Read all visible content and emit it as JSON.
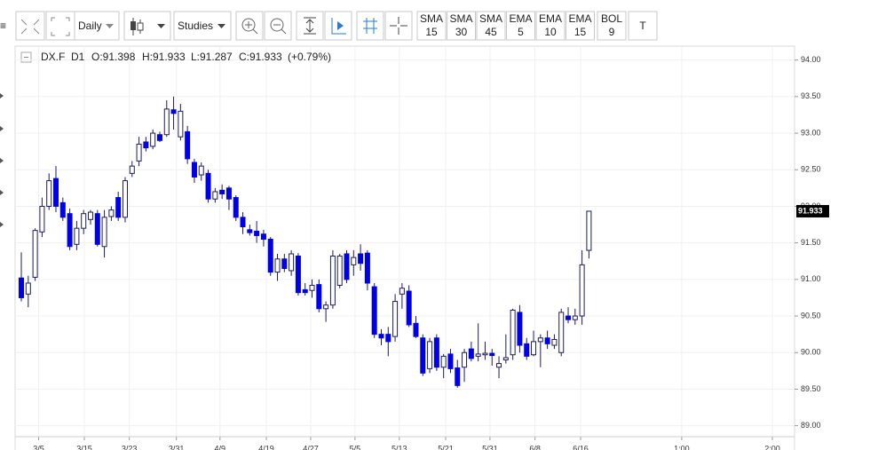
{
  "toolbar": {
    "interval": "Daily",
    "studies": "Studies",
    "indicators": [
      {
        "name": "SMA",
        "period": "15"
      },
      {
        "name": "SMA",
        "period": "30"
      },
      {
        "name": "SMA",
        "period": "45"
      },
      {
        "name": "EMA",
        "period": "5"
      },
      {
        "name": "EMA",
        "period": "10"
      },
      {
        "name": "EMA",
        "period": "15"
      },
      {
        "name": "BOL",
        "period": "9"
      }
    ],
    "text_tool": "T"
  },
  "chart_data": {
    "type": "candlestick",
    "header": {
      "symbol": "DX.F",
      "period": "D1",
      "open": "O:91.398",
      "high": "H:91.933",
      "low": "L:91.287",
      "close": "C:91.933",
      "change": "(+0.79%)"
    },
    "colors": {
      "up": "#ffffff",
      "down": "#0000e6",
      "outline": "#1c1c5c"
    },
    "open": [
      91.02,
      90.8,
      91.03,
      91.65,
      92.0,
      92.38,
      92.05,
      91.9,
      91.48,
      91.7,
      91.82,
      91.9,
      91.45,
      91.86,
      92.12,
      91.85,
      92.45,
      92.62,
      92.88,
      92.82,
      92.98,
      92.98,
      93.32,
      92.95,
      93.02,
      92.6,
      92.43,
      92.45,
      92.1,
      92.22,
      92.25,
      92.12,
      91.85,
      91.68,
      91.66,
      91.62,
      91.55,
      91.1,
      91.28,
      91.12,
      91.32,
      90.86,
      90.85,
      90.93,
      90.6,
      90.65,
      90.92,
      91.35,
      91.2,
      91.35,
      91.36,
      90.9,
      90.25,
      90.25,
      90.22,
      90.8,
      90.84,
      90.4,
      90.2,
      89.78,
      90.2,
      89.8,
      89.98,
      89.79,
      89.8,
      90.05,
      89.95,
      89.97,
      89.99,
      89.8,
      89.9,
      89.97,
      90.55,
      90.12,
      89.97,
      90.15,
      90.2,
      90.1,
      90.0,
      90.5,
      90.45,
      90.5,
      91.398
    ],
    "high": [
      91.37,
      91.05,
      91.7,
      92.12,
      92.45,
      92.55,
      92.12,
      91.97,
      91.8,
      91.95,
      91.95,
      91.95,
      91.95,
      92.0,
      92.2,
      92.4,
      92.62,
      92.95,
      92.95,
      93.05,
      93.02,
      93.45,
      93.5,
      93.4,
      93.1,
      92.65,
      92.6,
      92.5,
      92.25,
      92.3,
      92.28,
      92.15,
      91.92,
      91.75,
      91.8,
      91.68,
      91.58,
      91.35,
      91.35,
      91.4,
      91.36,
      90.95,
      91.0,
      91.0,
      90.7,
      91.4,
      91.35,
      91.4,
      91.4,
      91.48,
      91.4,
      90.95,
      90.32,
      90.35,
      90.8,
      90.95,
      90.92,
      90.5,
      90.25,
      90.2,
      90.25,
      89.98,
      90.05,
      89.9,
      90.05,
      90.15,
      90.4,
      90.15,
      90.05,
      89.95,
      90.25,
      90.6,
      90.65,
      90.2,
      90.3,
      90.25,
      90.3,
      90.25,
      90.6,
      90.62,
      90.6,
      91.4,
      91.933
    ],
    "low": [
      90.7,
      90.62,
      90.98,
      91.58,
      91.95,
      91.92,
      91.8,
      91.4,
      91.4,
      91.62,
      91.75,
      91.45,
      91.3,
      91.8,
      91.8,
      91.78,
      92.4,
      92.55,
      92.75,
      92.78,
      92.88,
      92.95,
      93.05,
      92.9,
      92.58,
      92.32,
      92.35,
      92.05,
      92.05,
      92.1,
      91.95,
      91.8,
      91.62,
      91.6,
      91.5,
      91.45,
      91.05,
      90.98,
      91.1,
      91.05,
      90.78,
      90.78,
      90.75,
      90.55,
      90.42,
      90.6,
      90.88,
      90.95,
      91.05,
      91.12,
      90.85,
      90.2,
      90.1,
      89.95,
      90.15,
      90.6,
      90.35,
      90.2,
      89.68,
      89.72,
      89.75,
      89.65,
      89.72,
      89.52,
      89.6,
      89.88,
      89.88,
      89.9,
      89.82,
      89.65,
      89.85,
      89.9,
      90.0,
      89.9,
      89.95,
      89.8,
      90.05,
      90.05,
      89.95,
      90.4,
      90.38,
      90.38,
      91.287
    ],
    "close": [
      90.75,
      90.95,
      91.67,
      92.0,
      92.35,
      92.0,
      91.85,
      91.45,
      91.7,
      91.9,
      91.92,
      91.48,
      91.85,
      91.95,
      91.85,
      92.35,
      92.55,
      92.85,
      92.8,
      93.0,
      92.9,
      93.33,
      93.27,
      93.3,
      92.65,
      92.4,
      92.55,
      92.1,
      92.2,
      92.17,
      92.1,
      91.85,
      91.72,
      91.64,
      91.6,
      91.55,
      91.1,
      91.28,
      91.15,
      91.35,
      90.82,
      90.82,
      90.92,
      90.6,
      90.65,
      91.32,
      91.32,
      91.0,
      91.3,
      91.22,
      90.95,
      90.25,
      90.2,
      90.15,
      90.7,
      90.88,
      90.38,
      90.22,
      89.72,
      90.15,
      89.8,
      89.95,
      89.78,
      89.55,
      90.0,
      89.92,
      89.98,
      89.99,
      89.96,
      89.85,
      89.93,
      90.58,
      90.1,
      89.95,
      90.15,
      90.2,
      90.12,
      90.18,
      90.55,
      90.45,
      90.5,
      91.2,
      91.933
    ],
    "xlim": [
      -0.9,
      111.7
    ],
    "xticks": [
      {
        "value": 2.5,
        "label": "3/5"
      },
      {
        "value": 9.1,
        "label": "3/15"
      },
      {
        "value": 15.6,
        "label": "3/23"
      },
      {
        "value": 22.4,
        "label": "3/31"
      },
      {
        "value": 28.7,
        "label": "4/9"
      },
      {
        "value": 35.4,
        "label": "4/19"
      },
      {
        "value": 41.8,
        "label": "4/27"
      },
      {
        "value": 48.2,
        "label": "5/5"
      },
      {
        "value": 54.6,
        "label": "5/13"
      },
      {
        "value": 61.3,
        "label": "5/21"
      },
      {
        "value": 67.7,
        "label": "5/31"
      },
      {
        "value": 74.2,
        "label": "6/8"
      },
      {
        "value": 80.8,
        "label": "6/16"
      },
      {
        "value": 95.4,
        "label": "1:00"
      },
      {
        "value": 108.5,
        "label": "2:00"
      }
    ],
    "ylim": [
      88.85,
      94.19
    ],
    "yticks": [
      {
        "value": 89,
        "label": "89.00"
      },
      {
        "value": 89.5,
        "label": "89.50"
      },
      {
        "value": 90,
        "label": "90.00"
      },
      {
        "value": 90.5,
        "label": "90.50"
      },
      {
        "value": 91,
        "label": "91.00"
      },
      {
        "value": 91.5,
        "label": "91.50"
      },
      {
        "value": 92,
        "label": "92.00"
      },
      {
        "value": 92.5,
        "label": "92.50"
      },
      {
        "value": 93,
        "label": "93.00"
      },
      {
        "value": 93.5,
        "label": "93.50"
      },
      {
        "value": 94,
        "label": "94.00"
      }
    ],
    "last_price": {
      "value": 91.933,
      "label": "91.933"
    },
    "grid": true
  }
}
